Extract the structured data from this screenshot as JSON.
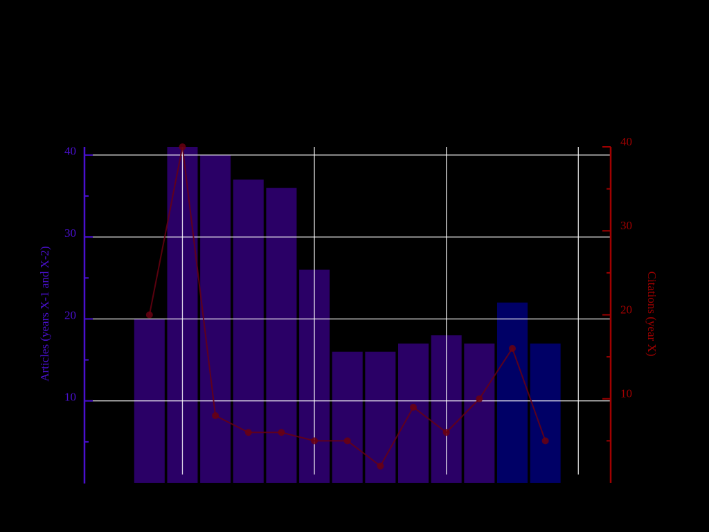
{
  "chart_data": {
    "type": "bar-line",
    "categories": [
      null,
      null,
      null,
      null,
      null,
      null,
      null,
      null,
      null,
      null,
      null,
      null,
      null
    ],
    "series": [
      {
        "type": "bar",
        "colors": [
          "#2a0066",
          "#2a0066",
          "#2a0066",
          "#2a0066",
          "#2a0066",
          "#2a0066",
          "#2a0066",
          "#2a0066",
          "#2a0066",
          "#2a0066",
          "#2a0066",
          "#000066",
          "#000066"
        ],
        "values": [
          20,
          41,
          40,
          37,
          36,
          26,
          16,
          16,
          17,
          18,
          17,
          22,
          17
        ]
      },
      {
        "type": "line",
        "axis": "y2",
        "color": "#6a0010",
        "values": [
          20,
          40,
          8,
          6,
          6,
          5,
          5,
          2,
          9,
          6,
          10,
          16,
          5
        ]
      }
    ],
    "ylabel": "Articles (years X-1 and X-2)",
    "ylabel_color": "#4a10d0",
    "y2label": "Citations (year X)",
    "y2label_color": "#a00000",
    "ylim": [
      0,
      41
    ],
    "yticks": [
      10,
      20,
      30,
      40
    ],
    "yminorticks": [
      5,
      15,
      25,
      35
    ],
    "y2lim": [
      0,
      40
    ],
    "y2ticks": [
      10,
      20,
      30,
      40
    ],
    "y2minorticks": [
      5,
      15,
      25,
      35
    ],
    "grid": true
  }
}
